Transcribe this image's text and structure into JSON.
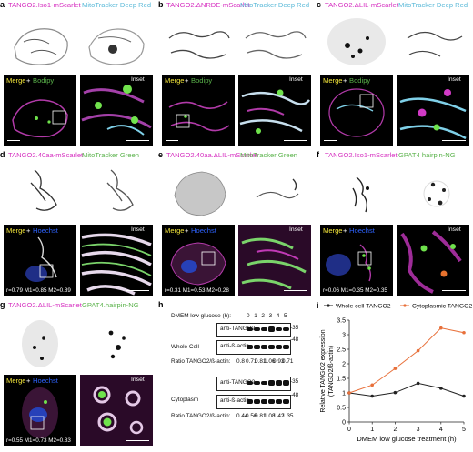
{
  "panels": {
    "a": {
      "letter": "a",
      "ch1": "TANGO2.Iso1-mScarlet",
      "ch2": "MitoTracker Deep Red",
      "merge": "Merge",
      "plus": "+",
      "stain": "Bodipy",
      "inset": "Inset"
    },
    "b": {
      "letter": "b",
      "ch1": "TANGO2.ΔNRDE-mScarlet",
      "ch2": "MitoTracker Deep Red",
      "merge": "Merge",
      "plus": "+",
      "stain": "Bodipy",
      "inset": "Inset"
    },
    "c": {
      "letter": "c",
      "ch1": "TANGO2.ΔLIL-mScarlet",
      "ch2": "MitoTracker Deep Red",
      "merge": "Merge",
      "plus": "+",
      "stain": "Bodipy",
      "inset": "Inset"
    },
    "d": {
      "letter": "d",
      "ch1": "TANGO2.40aa-mScarlet",
      "ch2": "MitoTracker Green",
      "merge": "Merge",
      "plus": "+",
      "stain": "Hoechst",
      "inset": "Inset",
      "stats": "r=0.79  M1=0.85  M2=0.89"
    },
    "e": {
      "letter": "e",
      "ch1": "TANGO2.40aa.ΔLIL-mScarlet",
      "ch2": "MitoTracker Green",
      "merge": "Merge",
      "plus": "+",
      "stain": "Hoechst",
      "inset": "Inset",
      "stats": "r=0.31  M1=0.53  M2=0.28"
    },
    "f": {
      "letter": "f",
      "ch1": "TANGO2.Iso1-mScarlet",
      "ch2": "GPAT4 hairpin-NG",
      "merge": "Merge",
      "plus": "+",
      "stain": "Hoechst",
      "inset": "Inset",
      "stats": "r=0.06  M1=0.35  M2=0.35"
    },
    "g": {
      "letter": "g",
      "ch1": "TANGO2.ΔLIL-mScarlet",
      "ch2": "GPAT4.hairpin-NG",
      "merge": "Merge",
      "plus": "+",
      "stain": "Hoechst",
      "inset": "Inset",
      "stats": "r=0.55  M1=0.73  M2=0.83"
    }
  },
  "blot": {
    "letter": "h",
    "condition": "DMEM low glucose (h):",
    "timepoints": [
      "0",
      "1",
      "2",
      "3",
      "4",
      "5"
    ],
    "whole_cell_label": "Whole Cell",
    "cytoplasm_label": "Cytoplasm",
    "anti_tango2": "anti-TANGO2",
    "anti_actin": "anti-ß-actin",
    "mw_35": "-35",
    "mw_48": "-48",
    "ratio_label": "Ratio TANGO2/ß-actin:",
    "whole_cell_ratios": [
      "0.8",
      "0.71",
      "0.81",
      "1.06",
      "0.93",
      "0.71"
    ],
    "cytoplasm_ratios": [
      "0.44",
      "0.56",
      "0.81",
      "1.08",
      "1.42",
      "1.35"
    ]
  },
  "chart_data": {
    "type": "line",
    "letter": "i",
    "x": [
      0,
      1,
      2,
      3,
      4,
      5
    ],
    "series": [
      {
        "name": "Whole cell TANGO2",
        "values": [
          1.0,
          0.89,
          1.01,
          1.33,
          1.16,
          0.89
        ],
        "color": "#222222"
      },
      {
        "name": "Cytoplasmic TANGO2",
        "values": [
          1.0,
          1.27,
          1.84,
          2.45,
          3.23,
          3.07
        ],
        "color": "#e8703a"
      }
    ],
    "xlabel": "DMEM low glucose treatment (h)",
    "ylabel": "Relative TANGO2 expression",
    "ylabel2": "(TANGO2/ß-actin)",
    "xticks": [
      "0",
      "1",
      "2",
      "3",
      "4",
      "5"
    ],
    "yticks": [
      "0",
      "0.5",
      "1",
      "1.5",
      "2",
      "2.5",
      "3",
      "3.5"
    ],
    "xlim": [
      0,
      5
    ],
    "ylim": [
      0,
      3.5
    ],
    "legend_position": "top"
  }
}
